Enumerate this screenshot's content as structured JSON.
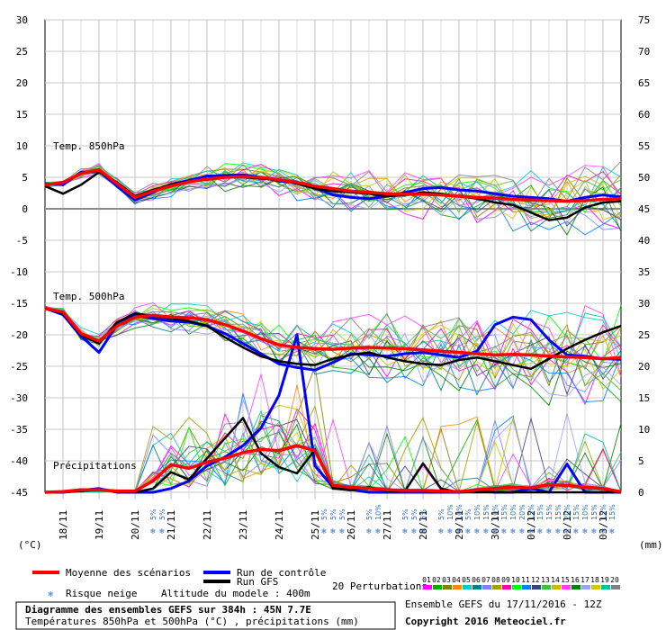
{
  "chart_data": {
    "type": "line",
    "title": "Diagramme des ensembles GEFS sur 384h : 45N 7.7E",
    "subtitle": "Températures 850hPa et 500hPa (°C) , précipitations (mm)",
    "run_info": "Ensemble GEFS du 17/11/2016 - 12Z",
    "copyright": "Copyright 2016 Meteociel.fr",
    "altitude": "Altitude du modele : 400m",
    "left_axis": {
      "unit": "(°C)",
      "ticks": [
        30,
        25,
        20,
        15,
        10,
        5,
        0,
        -5,
        -10,
        -15,
        -20,
        -25,
        -30,
        -35,
        -40,
        -45
      ]
    },
    "right_axis": {
      "unit": "(mm)",
      "ticks": [
        75,
        70,
        65,
        60,
        55,
        50,
        45,
        40,
        35,
        30,
        25,
        20,
        15,
        10,
        5,
        0
      ]
    },
    "x_labels": [
      "18/11",
      "19/11",
      "20/11",
      "21/11",
      "22/11",
      "23/11",
      "24/11",
      "25/11",
      "26/11",
      "27/11",
      "28/11",
      "29/11",
      "30/11",
      "01/12",
      "02/12",
      "03/12"
    ],
    "panel_labels": {
      "t850": "Temp. 850hPa",
      "t500": "Temp. 500hPa",
      "precip": "Précipitations"
    },
    "legend": {
      "mean": "Moyenne des scénarios",
      "control": "Run de contrôle",
      "gfs": "Run GFS",
      "perturbations": "20 Perturbations",
      "snow": "Risque neige",
      "colors": {
        "mean": "#ff0000",
        "control": "#0000ff",
        "gfs": "#000000"
      },
      "member_labels": [
        "01",
        "02",
        "03",
        "04",
        "05",
        "06",
        "07",
        "08",
        "09",
        "10",
        "11",
        "12",
        "13",
        "14",
        "15",
        "16",
        "17",
        "18",
        "19",
        "20"
      ],
      "member_colors": [
        "#ff00ff",
        "#00aa00",
        "#808000",
        "#ff8800",
        "#00cccc",
        "#008080",
        "#8080ff",
        "#a0a000",
        "#ff00aa",
        "#00ff00",
        "#0080ff",
        "#404080",
        "#40c040",
        "#c0c000",
        "#ff40ff",
        "#008000",
        "#a0a0ff",
        "#cccc00",
        "#00c0a0",
        "#808080"
      ]
    },
    "snow_risk": [
      {
        "x": 20.5,
        "pct": "5%"
      },
      {
        "x": 20.75,
        "pct": "5%"
      },
      {
        "x": 25.25,
        "pct": "5%"
      },
      {
        "x": 25.5,
        "pct": "5%"
      },
      {
        "x": 25.75,
        "pct": "5%"
      },
      {
        "x": 26.5,
        "pct": "5%"
      },
      {
        "x": 26.75,
        "pct": "10%"
      },
      {
        "x": 27.5,
        "pct": "5%"
      },
      {
        "x": 27.75,
        "pct": "5%"
      },
      {
        "x": 28.0,
        "pct": "5%"
      },
      {
        "x": 28.5,
        "pct": "5%"
      },
      {
        "x": 28.75,
        "pct": "10%"
      },
      {
        "x": 29.0,
        "pct": "10%"
      },
      {
        "x": 29.25,
        "pct": "5%"
      },
      {
        "x": 29.5,
        "pct": "10%"
      },
      {
        "x": 29.75,
        "pct": "15%"
      },
      {
        "x": 30.0,
        "pct": "10%"
      },
      {
        "x": 30.25,
        "pct": "15%"
      },
      {
        "x": 30.5,
        "pct": "10%"
      },
      {
        "x": 30.75,
        "pct": "20%"
      },
      {
        "x": 31.0,
        "pct": "15%"
      },
      {
        "x": 31.25,
        "pct": "15%"
      },
      {
        "x": 31.5,
        "pct": "15%"
      },
      {
        "x": 31.75,
        "pct": "15%"
      },
      {
        "x": 32.0,
        "pct": "20%"
      },
      {
        "x": 32.25,
        "pct": "15%"
      },
      {
        "x": 32.5,
        "pct": "10%"
      },
      {
        "x": 32.75,
        "pct": "15%"
      },
      {
        "x": 33.0,
        "pct": "15%"
      },
      {
        "x": 33.25,
        "pct": "15%"
      }
    ],
    "x": [
      17.5,
      18.0,
      18.5,
      19.0,
      19.5,
      20.0,
      20.5,
      21.0,
      21.5,
      22.0,
      22.5,
      23.0,
      23.5,
      24.0,
      24.5,
      25.0,
      25.5,
      26.0,
      26.5,
      27.0,
      27.5,
      28.0,
      28.5,
      29.0,
      29.5,
      30.0,
      30.5,
      31.0,
      31.5,
      32.0,
      32.5,
      33.0,
      33.5
    ],
    "series": [
      {
        "group": "t850",
        "role": "mean",
        "values": [
          3.8,
          4.2,
          5.6,
          6.2,
          4.0,
          1.8,
          2.8,
          3.6,
          4.3,
          4.7,
          5.0,
          5.1,
          5.0,
          4.6,
          4.2,
          3.6,
          3.2,
          2.8,
          2.6,
          2.4,
          2.3,
          2.3,
          2.2,
          2.0,
          1.8,
          1.7,
          1.5,
          1.4,
          1.3,
          1.2,
          1.3,
          1.5,
          1.6
        ]
      },
      {
        "group": "t850",
        "role": "control",
        "values": [
          4.0,
          3.8,
          5.8,
          6.0,
          3.6,
          1.4,
          2.6,
          3.9,
          4.5,
          5.2,
          5.3,
          5.4,
          5.0,
          4.4,
          4.2,
          3.3,
          2.2,
          1.8,
          1.6,
          2.0,
          2.6,
          3.2,
          3.4,
          3.0,
          2.8,
          2.4,
          2.0,
          1.8,
          1.6,
          1.2,
          1.8,
          2.2,
          1.9
        ]
      },
      {
        "group": "t850",
        "role": "gfs",
        "values": [
          3.6,
          2.4,
          3.8,
          5.8,
          4.2,
          2.0,
          3.0,
          3.8,
          4.4,
          4.6,
          5.2,
          5.0,
          4.8,
          4.6,
          4.0,
          3.2,
          2.8,
          2.6,
          2.4,
          2.0,
          2.2,
          2.6,
          2.4,
          2.0,
          1.6,
          1.0,
          0.6,
          -0.6,
          -1.8,
          -1.4,
          0.2,
          1.0,
          1.2
        ]
      },
      {
        "group": "t500",
        "role": "mean",
        "values": [
          -15.8,
          -16.4,
          -19.8,
          -21.0,
          -18.6,
          -17.2,
          -16.9,
          -17.2,
          -17.3,
          -17.6,
          -18.4,
          -19.4,
          -20.6,
          -21.6,
          -22.0,
          -22.2,
          -22.3,
          -22.1,
          -22.0,
          -22.1,
          -22.2,
          -22.4,
          -22.6,
          -22.8,
          -23.0,
          -23.2,
          -23.1,
          -23.2,
          -23.4,
          -23.5,
          -23.6,
          -23.8,
          -23.6
        ]
      },
      {
        "group": "t500",
        "role": "control",
        "values": [
          -15.8,
          -16.8,
          -20.2,
          -22.8,
          -18.4,
          -17.0,
          -17.4,
          -17.8,
          -18.0,
          -18.6,
          -19.8,
          -21.4,
          -23.0,
          -24.6,
          -25.2,
          -25.6,
          -24.4,
          -23.0,
          -23.2,
          -23.4,
          -23.0,
          -22.8,
          -23.2,
          -23.6,
          -22.6,
          -18.4,
          -17.2,
          -17.6,
          -20.8,
          -23.2,
          -23.4,
          -23.8,
          -23.9
        ]
      },
      {
        "group": "t500",
        "role": "gfs",
        "values": [
          -15.8,
          -16.6,
          -20.0,
          -21.4,
          -18.0,
          -16.6,
          -17.0,
          -17.4,
          -17.8,
          -18.6,
          -20.4,
          -22.0,
          -23.4,
          -24.2,
          -24.6,
          -24.8,
          -23.8,
          -23.2,
          -22.8,
          -23.6,
          -24.2,
          -24.6,
          -24.8,
          -24.0,
          -23.6,
          -24.2,
          -24.8,
          -25.4,
          -23.8,
          -22.2,
          -20.8,
          -19.6,
          -18.6
        ]
      },
      {
        "group": "precip",
        "role": "mean",
        "values": [
          0.0,
          0.1,
          0.4,
          0.4,
          0.2,
          0.2,
          1.8,
          4.4,
          3.8,
          4.8,
          5.4,
          6.3,
          6.8,
          6.6,
          7.4,
          6.6,
          1.1,
          0.8,
          0.6,
          0.4,
          0.3,
          0.3,
          0.2,
          0.1,
          0.4,
          0.6,
          0.8,
          0.7,
          1.2,
          1.1,
          0.8,
          0.6,
          0.1
        ]
      },
      {
        "group": "precip",
        "role": "control",
        "values": [
          0.0,
          0.0,
          0.3,
          0.6,
          0.0,
          0.0,
          0.0,
          0.6,
          1.8,
          4.2,
          5.6,
          7.4,
          10.2,
          15.4,
          25.0,
          4.2,
          0.8,
          0.4,
          0.0,
          0.0,
          0.0,
          0.0,
          0.0,
          0.0,
          0.2,
          0.0,
          0.0,
          0.6,
          0.0,
          4.5,
          0.0,
          0.0,
          0.0
        ]
      },
      {
        "group": "precip",
        "role": "gfs",
        "values": [
          0.0,
          0.0,
          0.2,
          0.4,
          0.2,
          0.0,
          0.6,
          3.2,
          2.0,
          5.4,
          8.6,
          11.8,
          6.2,
          4.0,
          3.0,
          6.8,
          0.6,
          0.4,
          0.8,
          0.2,
          0.2,
          4.6,
          0.6,
          0.0,
          0.0,
          0.0,
          0.0,
          0.0,
          0.0,
          0.0,
          0.0,
          0.0,
          0.0
        ]
      }
    ]
  }
}
